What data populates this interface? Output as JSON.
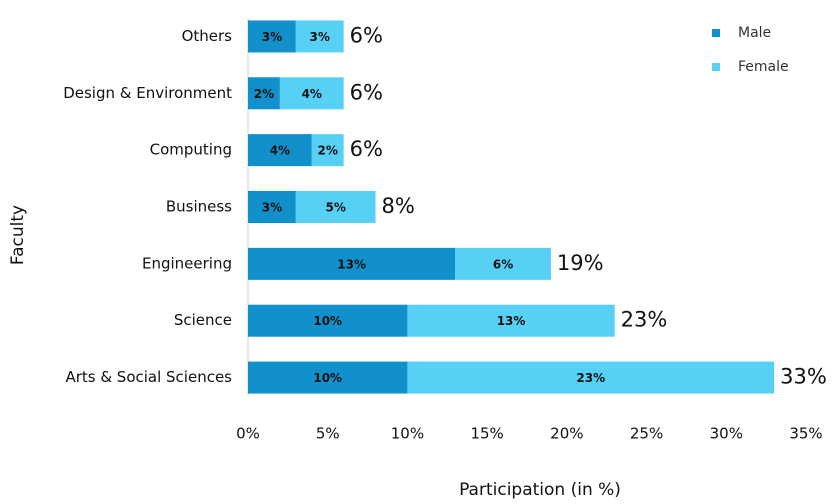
{
  "chart_data": {
    "type": "stacked-barh",
    "categories": [
      "Others",
      "Design & Environment",
      "Computing",
      "Business",
      "Engineering",
      "Science",
      "Arts & Social Sciences"
    ],
    "series": [
      {
        "name": "Male",
        "color": "#1190cb",
        "values": [
          3,
          2,
          4,
          3,
          13,
          10,
          10
        ],
        "value_labels": [
          "3%",
          "2%",
          "4%",
          "3%",
          "13%",
          "10%",
          "10%"
        ]
      },
      {
        "name": "Female",
        "color": "#56d0f5",
        "values": [
          3,
          4,
          2,
          5,
          6,
          13,
          23
        ],
        "value_labels": [
          "3%",
          "4%",
          "2%",
          "5%",
          "6%",
          "13%",
          "23%"
        ]
      }
    ],
    "totals": {
      "values": [
        6,
        6,
        6,
        8,
        19,
        23,
        33
      ],
      "value_labels": [
        "6%",
        "6%",
        "6%",
        "8%",
        "19%",
        "23%",
        "33%"
      ]
    },
    "xlim": [
      0,
      35
    ],
    "xticks": [
      {
        "value": 0,
        "label": "0%"
      },
      {
        "value": 5,
        "label": "5%"
      },
      {
        "value": 10,
        "label": "10%"
      },
      {
        "value": 15,
        "label": "15%"
      },
      {
        "value": 20,
        "label": "20%"
      },
      {
        "value": 25,
        "label": "25%"
      },
      {
        "value": 30,
        "label": "30%"
      },
      {
        "value": 35,
        "label": "35%"
      }
    ],
    "x_label": "Participation (in %)",
    "y_label": "Faculty",
    "legend": "top-right"
  }
}
